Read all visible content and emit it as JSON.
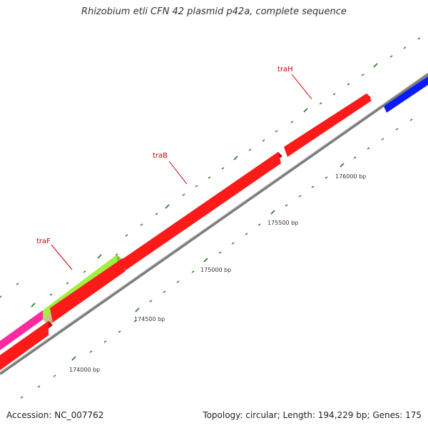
{
  "title": "Rhizobium etli CFN 42 plasmid p42a, complete sequence",
  "footer": {
    "accession": "Accession: NC_007762",
    "summary": "Topology: circular; Length: 194,229 bp; Genes: 175"
  },
  "colors": {
    "backbone": "#8c8c8c",
    "tick": "#2e7d2e",
    "gene_label": "#cc0000",
    "forward_feature": "#ff1a1a",
    "reverse_feature": "#0a1aff",
    "magenta_feature": "#ff2aa0",
    "lime_feature": "#a0f040",
    "olive_feature": "#b0a050"
  },
  "ticks": [
    {
      "label": "174000 bp"
    },
    {
      "label": "174500 bp"
    },
    {
      "label": "175000 bp"
    },
    {
      "label": "175500 bp"
    },
    {
      "label": "176000 bp"
    }
  ],
  "genes": [
    {
      "name": "traF"
    },
    {
      "name": "traB"
    },
    {
      "name": "traH"
    }
  ]
}
